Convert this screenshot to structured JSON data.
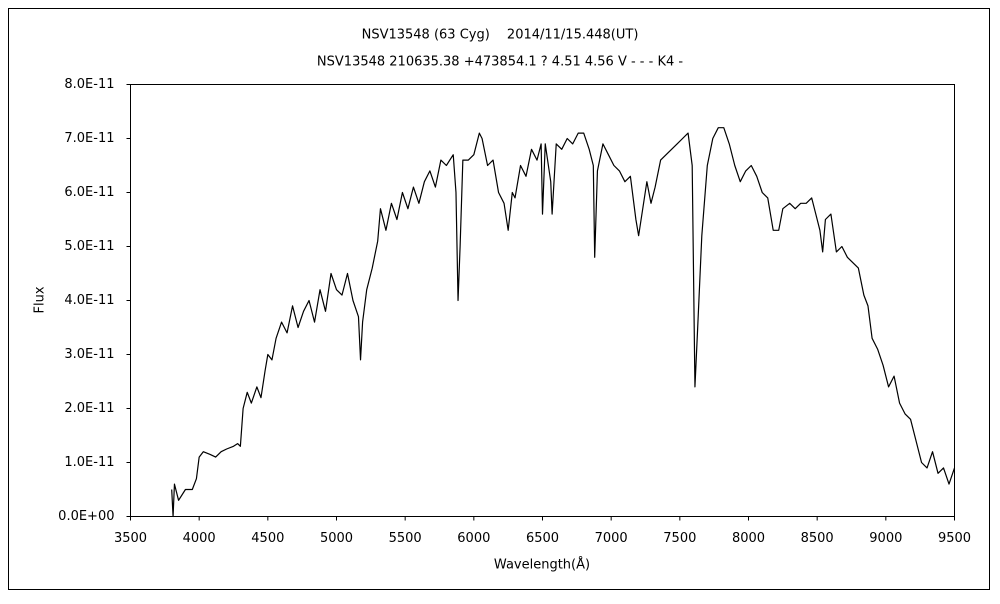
{
  "chart_data": {
    "type": "line",
    "title": "NSV13548 (63 Cyg)　 2014/11/15.448(UT)",
    "subtitle": "NSV13548 210635.38 +473854.1 ? 4.51 4.56 V - - - K4 -",
    "x_label": "Wavelength(Å)",
    "y_label": "Flux",
    "xlim": [
      3500,
      9500
    ],
    "xticks": [
      3500,
      4000,
      4500,
      5000,
      5500,
      6000,
      6500,
      7000,
      7500,
      8000,
      8500,
      9000,
      9500
    ],
    "ylim": [
      0,
      8e-11
    ],
    "yticks": [
      {
        "value": 0,
        "label": "0.0E+00"
      },
      {
        "value": 1e-11,
        "label": "1.0E-11"
      },
      {
        "value": 2e-11,
        "label": "2.0E-11"
      },
      {
        "value": 3e-11,
        "label": "3.0E-11"
      },
      {
        "value": 4e-11,
        "label": "4.0E-11"
      },
      {
        "value": 5e-11,
        "label": "5.0E-11"
      },
      {
        "value": 6e-11,
        "label": "6.0E-11"
      },
      {
        "value": 7e-11,
        "label": "7.0E-11"
      },
      {
        "value": 8e-11,
        "label": "8.0E-11"
      }
    ],
    "grid": false,
    "color": "#000000",
    "x": [
      3800,
      3810,
      3820,
      3850,
      3900,
      3950,
      3980,
      4000,
      4030,
      4080,
      4120,
      4160,
      4200,
      4250,
      4280,
      4300,
      4320,
      4350,
      4380,
      4420,
      4450,
      4480,
      4500,
      4530,
      4560,
      4600,
      4640,
      4680,
      4720,
      4760,
      4800,
      4840,
      4880,
      4920,
      4960,
      5000,
      5040,
      5080,
      5120,
      5160,
      5175,
      5190,
      5220,
      5260,
      5300,
      5320,
      5360,
      5400,
      5440,
      5480,
      5520,
      5560,
      5600,
      5640,
      5680,
      5720,
      5760,
      5800,
      5850,
      5870,
      5885,
      5900,
      5920,
      5960,
      6000,
      6040,
      6060,
      6100,
      6140,
      6180,
      6220,
      6250,
      6280,
      6300,
      6340,
      6380,
      6420,
      6460,
      6490,
      6500,
      6520,
      6560,
      6570,
      6600,
      6640,
      6680,
      6720,
      6760,
      6800,
      6840,
      6870,
      6880,
      6900,
      6940,
      6980,
      7020,
      7060,
      7100,
      7140,
      7180,
      7200,
      7230,
      7260,
      7290,
      7320,
      7360,
      7400,
      7440,
      7480,
      7520,
      7560,
      7590,
      7610,
      7630,
      7660,
      7700,
      7740,
      7780,
      7820,
      7860,
      7900,
      7940,
      7980,
      8020,
      8060,
      8100,
      8140,
      8180,
      8220,
      8250,
      8300,
      8340,
      8380,
      8420,
      8460,
      8500,
      8520,
      8540,
      8560,
      8600,
      8640,
      8680,
      8720,
      8760,
      8800,
      8840,
      8870,
      8900,
      8940,
      8980,
      9020,
      9060,
      9100,
      9140,
      9180,
      9220,
      9260,
      9300,
      9340,
      9380,
      9420,
      9460,
      9500
    ],
    "values": [
      5e-12,
      0.0,
      6e-12,
      3e-12,
      5e-12,
      5e-12,
      7e-12,
      1.1e-11,
      1.2e-11,
      1.15e-11,
      1.1e-11,
      1.2e-11,
      1.25e-11,
      1.3e-11,
      1.35e-11,
      1.3e-11,
      2e-11,
      2.3e-11,
      2.1e-11,
      2.4e-11,
      2.2e-11,
      2.7e-11,
      3e-11,
      2.9e-11,
      3.3e-11,
      3.6e-11,
      3.4e-11,
      3.9e-11,
      3.5e-11,
      3.8e-11,
      4e-11,
      3.6e-11,
      4.2e-11,
      3.8e-11,
      4.5e-11,
      4.2e-11,
      4.1e-11,
      4.5e-11,
      4e-11,
      3.7e-11,
      2.9e-11,
      3.6e-11,
      4.2e-11,
      4.6e-11,
      5.1e-11,
      5.7e-11,
      5.3e-11,
      5.8e-11,
      5.5e-11,
      6e-11,
      5.7e-11,
      6.1e-11,
      5.8e-11,
      6.2e-11,
      6.4e-11,
      6.1e-11,
      6.6e-11,
      6.5e-11,
      6.7e-11,
      6e-11,
      4e-11,
      5e-11,
      6.6e-11,
      6.6e-11,
      6.7e-11,
      7.1e-11,
      7e-11,
      6.5e-11,
      6.6e-11,
      6e-11,
      5.8e-11,
      5.3e-11,
      6e-11,
      5.9e-11,
      6.5e-11,
      6.3e-11,
      6.8e-11,
      6.6e-11,
      6.9e-11,
      5.6e-11,
      6.9e-11,
      6.2e-11,
      5.6e-11,
      6.9e-11,
      6.8e-11,
      7e-11,
      6.9e-11,
      7.1e-11,
      7.1e-11,
      6.8e-11,
      6.5e-11,
      4.8e-11,
      6.4e-11,
      6.9e-11,
      6.7e-11,
      6.5e-11,
      6.4e-11,
      6.2e-11,
      6.3e-11,
      5.5e-11,
      5.2e-11,
      5.7e-11,
      6.2e-11,
      5.8e-11,
      6.1e-11,
      6.6e-11,
      6.7e-11,
      6.8e-11,
      6.9e-11,
      7e-11,
      7.1e-11,
      6.5e-11,
      2.4e-11,
      3.5e-11,
      5.2e-11,
      6.5e-11,
      7e-11,
      7.2e-11,
      7.2e-11,
      6.9e-11,
      6.5e-11,
      6.2e-11,
      6.4e-11,
      6.5e-11,
      6.3e-11,
      6e-11,
      5.9e-11,
      5.3e-11,
      5.3e-11,
      5.7e-11,
      5.8e-11,
      5.7e-11,
      5.8e-11,
      5.8e-11,
      5.9e-11,
      5.5e-11,
      5.3e-11,
      4.9e-11,
      5.5e-11,
      5.6e-11,
      4.9e-11,
      5e-11,
      4.8e-11,
      4.7e-11,
      4.6e-11,
      4.1e-11,
      3.9e-11,
      3.3e-11,
      3.1e-11,
      2.8e-11,
      2.4e-11,
      2.6e-11,
      2.1e-11,
      1.9e-11,
      1.8e-11,
      1.4e-11,
      1e-11,
      9e-12,
      1.2e-11,
      8e-12,
      9e-12,
      6e-12,
      9e-12
    ]
  }
}
